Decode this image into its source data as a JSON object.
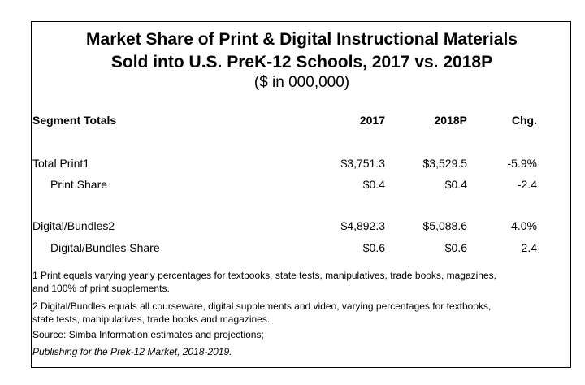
{
  "title": {
    "line1": "Market Share of Print & Digital Instructional Materials",
    "line2": "Sold into U.S. PreK-12 Schools, 2017 vs. 2018P",
    "line3": "($ in 000,000)"
  },
  "table": {
    "headers": [
      "Segment Totals",
      "2017",
      "2018P",
      "Chg."
    ],
    "rows": [
      {
        "label": "Total Print1",
        "v2017": "$3,751.3",
        "v2018": "$3,529.5",
        "chg": "-5.9%"
      },
      {
        "label": "Print Share",
        "v2017": "$0.4",
        "v2018": "$0.4",
        "chg": "-2.4"
      },
      {
        "label": "Digital/Bundles2",
        "v2017": "$4,892.3",
        "v2018": "$5,088.6",
        "chg": "4.0%"
      },
      {
        "label": "Digital/Bundles Share",
        "v2017": "$0.6",
        "v2018": "$0.6",
        "chg": "2.4"
      }
    ]
  },
  "notes": {
    "note1_line1": "1 Print equals varying yearly percentages for textbooks, state tests, manipulatives, trade books, magazines,",
    "note1_line2": "and 100% of print supplements.",
    "note2_line1": "2 Digital/Bundles equals all courseware, digital supplements and video, varying percentages for textbooks,",
    "note2_line2": "state tests, manipulatives, trade books and magazines.",
    "source": "Source: Simba Information estimates and projections;",
    "publication": "Publishing for the Prek-12 Market, 2018-2019."
  }
}
